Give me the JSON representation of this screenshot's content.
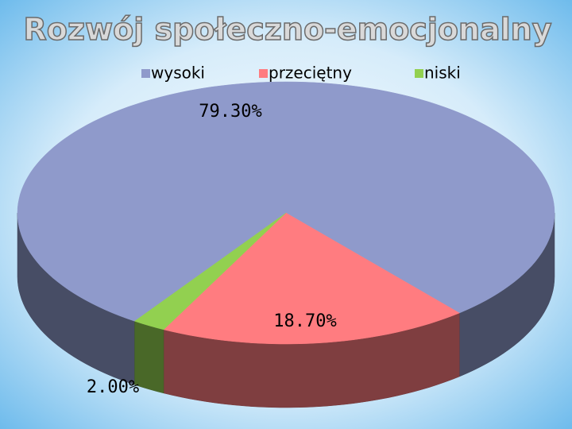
{
  "chart_data": {
    "type": "pie3d",
    "title": "Rozwój społeczno-emocjonalny",
    "categories": [
      "wysoki",
      "przeciętny",
      "niski"
    ],
    "values": [
      79.3,
      18.7,
      2.0
    ],
    "value_labels": [
      "79.30%",
      "18.70%",
      "2.00%"
    ],
    "colors": [
      "#8f9acb",
      "#ff7c80",
      "#92d050"
    ]
  }
}
